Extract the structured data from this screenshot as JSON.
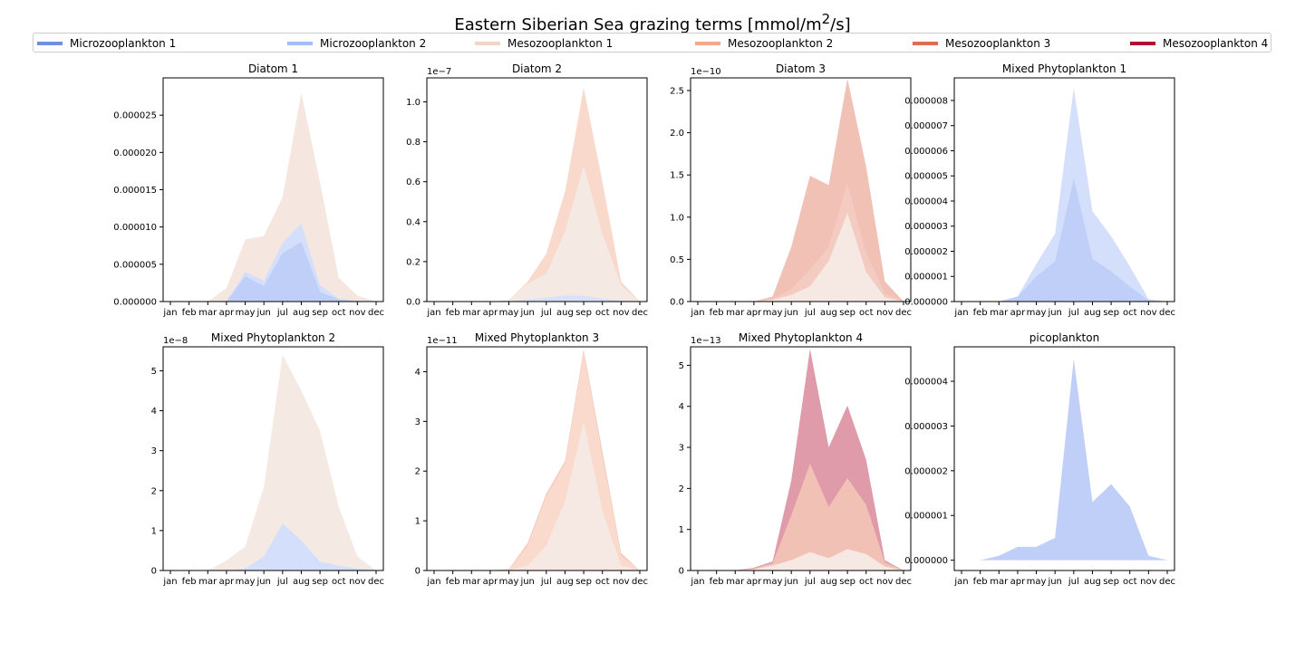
{
  "title_prefix": "Eastern Siberian Sea grazing terms [mmol/m",
  "title_sup": "2",
  "title_suffix": "/s]",
  "legend": [
    {
      "name": "Microzooplankton 1",
      "color": "#6f8fe0"
    },
    {
      "name": "Microzooplankton 2",
      "color": "#9fbff5"
    },
    {
      "name": "Mesozooplankton 1",
      "color": "#f2d3c4"
    },
    {
      "name": "Mesozooplankton 2",
      "color": "#f0a78a"
    },
    {
      "name": "Mesozooplankton 3",
      "color": "#e06a57"
    },
    {
      "name": "Mesozooplankton 4",
      "color": "#b40f2f"
    }
  ],
  "chart_data": [
    {
      "type": "area",
      "title": "Diatom 1",
      "categories": [
        "jan",
        "feb",
        "mar",
        "apr",
        "may",
        "jun",
        "jul",
        "aug",
        "sep",
        "oct",
        "nov",
        "dec"
      ],
      "ylim": [
        0,
        3e-05
      ],
      "offset_label": "",
      "yticks": [
        0,
        5e-06,
        1e-05,
        1.5e-05,
        2e-05,
        2.5e-05
      ],
      "ytick_labels": [
        "0.000000",
        "0.000005",
        "0.000010",
        "0.000015",
        "0.000020",
        "0.000025"
      ],
      "series": [
        {
          "color": "#f5e7df",
          "values": [
            0,
            0,
            0,
            1.8e-06,
            8.3e-06,
            8.8e-06,
            1.4e-05,
            2.8e-05,
            1.6e-05,
            3.2e-06,
            8e-07,
            0
          ]
        },
        {
          "color": "#d4e0fb",
          "values": [
            0,
            0,
            0,
            2e-08,
            4e-06,
            2.8e-06,
            7.9e-06,
            1.05e-05,
            2.2e-06,
            4e-07,
            1e-07,
            0
          ]
        },
        {
          "color": "#c0cff7",
          "values": [
            0,
            0,
            0,
            0,
            3.4e-06,
            2.1e-06,
            6.5e-06,
            8e-06,
            1.3e-06,
            3e-07,
            0,
            0
          ]
        }
      ]
    },
    {
      "type": "area",
      "title": "Diatom 2",
      "categories": [
        "jan",
        "feb",
        "mar",
        "apr",
        "may",
        "jun",
        "jul",
        "aug",
        "sep",
        "oct",
        "nov",
        "dec"
      ],
      "ylim": [
        0,
        1.12
      ],
      "offset_label": "1e−7",
      "yticks": [
        0,
        0.2,
        0.4,
        0.6,
        0.8,
        1.0
      ],
      "ytick_labels": [
        "0.0",
        "0.2",
        "0.4",
        "0.6",
        "0.8",
        "1.0"
      ],
      "series": [
        {
          "color": "#f9d9cc",
          "values": [
            0,
            0,
            0,
            0,
            0.005,
            0.1,
            0.24,
            0.55,
            1.07,
            0.6,
            0.1,
            0
          ]
        },
        {
          "color": "#f5e9e3",
          "values": [
            0,
            0,
            0,
            0,
            0.003,
            0.09,
            0.14,
            0.35,
            0.68,
            0.34,
            0.08,
            0
          ]
        },
        {
          "color": "#d8e2fa",
          "values": [
            0,
            0,
            0,
            0,
            0,
            0.01,
            0.02,
            0.03,
            0.03,
            0.015,
            0.005,
            0
          ]
        }
      ]
    },
    {
      "type": "area",
      "title": "Diatom 3",
      "categories": [
        "jan",
        "feb",
        "mar",
        "apr",
        "may",
        "jun",
        "jul",
        "aug",
        "sep",
        "oct",
        "nov",
        "dec"
      ],
      "ylim": [
        0,
        2.65
      ],
      "offset_label": "1e−10",
      "yticks": [
        0,
        0.5,
        1.0,
        1.5,
        2.0,
        2.5
      ],
      "ytick_labels": [
        "0.0",
        "0.5",
        "1.0",
        "1.5",
        "2.0",
        "2.5"
      ],
      "series": [
        {
          "color": "#f2c1b6",
          "values": [
            0,
            0,
            0,
            0,
            0.06,
            0.65,
            1.49,
            1.38,
            2.64,
            1.6,
            0.24,
            0
          ]
        },
        {
          "color": "#f4cbc0",
          "values": [
            0,
            0,
            0,
            0,
            0.03,
            0.15,
            0.38,
            0.65,
            1.4,
            0.58,
            0.1,
            0
          ]
        },
        {
          "color": "#f6e8e2",
          "values": [
            0,
            0,
            0,
            0,
            0.02,
            0.08,
            0.18,
            0.48,
            1.05,
            0.35,
            0.05,
            0
          ]
        }
      ]
    },
    {
      "type": "area",
      "title": "Mixed Phytoplankton 1",
      "categories": [
        "jan",
        "feb",
        "mar",
        "apr",
        "may",
        "jun",
        "jul",
        "aug",
        "sep",
        "oct",
        "nov",
        "dec"
      ],
      "ylim": [
        0,
        8.9e-06
      ],
      "offset_label": "",
      "yticks": [
        0,
        1e-06,
        2e-06,
        3e-06,
        4e-06,
        5e-06,
        6e-06,
        7e-06,
        8e-06
      ],
      "ytick_labels": [
        "0.000000",
        "0.000001",
        "0.000002",
        "0.000003",
        "0.000004",
        "0.000005",
        "0.000006",
        "0.000007",
        "0.000008"
      ],
      "series": [
        {
          "color": "#d4e0fb",
          "values": [
            0,
            0,
            0,
            2e-07,
            1.5e-06,
            2.7e-06,
            8.5e-06,
            3.6e-06,
            2.6e-06,
            1.4e-06,
            1e-07,
            0
          ]
        },
        {
          "color": "#c0cff7",
          "values": [
            0,
            0,
            0,
            2e-07,
            1e-06,
            1.6e-06,
            4.9e-06,
            1.7e-06,
            1.2e-06,
            6e-07,
            5e-08,
            0
          ]
        }
      ]
    },
    {
      "type": "area",
      "title": "Mixed Phytoplankton 2",
      "categories": [
        "jan",
        "feb",
        "mar",
        "apr",
        "may",
        "jun",
        "jul",
        "aug",
        "sep",
        "oct",
        "nov",
        "dec"
      ],
      "ylim": [
        0,
        5.6
      ],
      "offset_label": "1e−8",
      "yticks": [
        0,
        1,
        2,
        3,
        4,
        5
      ],
      "ytick_labels": [
        "0",
        "1",
        "2",
        "3",
        "4",
        "5"
      ],
      "series": [
        {
          "color": "#f5e9e3",
          "values": [
            0,
            0,
            0,
            0.25,
            0.6,
            2.1,
            5.4,
            4.5,
            3.5,
            1.6,
            0.35,
            0
          ]
        },
        {
          "color": "#d4e0fb",
          "values": [
            0,
            0,
            0,
            0,
            0.05,
            0.35,
            1.18,
            0.75,
            0.22,
            0.12,
            0.05,
            0
          ]
        }
      ]
    },
    {
      "type": "area",
      "title": "Mixed Phytoplankton 3",
      "categories": [
        "jan",
        "feb",
        "mar",
        "apr",
        "may",
        "jun",
        "jul",
        "aug",
        "sep",
        "oct",
        "nov",
        "dec"
      ],
      "ylim": [
        0,
        4.5
      ],
      "offset_label": "1e−11",
      "yticks": [
        0,
        1,
        2,
        3,
        4
      ],
      "ytick_labels": [
        "0",
        "1",
        "2",
        "3",
        "4"
      ],
      "series": [
        {
          "color": "#f3c9bd",
          "values": [
            0,
            0,
            0,
            0,
            0.03,
            0.55,
            1.55,
            2.2,
            4.45,
            2.4,
            0.35,
            0
          ]
        },
        {
          "color": "#f9dacd",
          "values": [
            0,
            0,
            0,
            0,
            0.02,
            0.5,
            1.5,
            2.15,
            4.4,
            2.3,
            0.3,
            0
          ]
        },
        {
          "color": "#f6e8e2",
          "values": [
            0,
            0,
            0,
            0,
            0.01,
            0.1,
            0.5,
            1.4,
            3.0,
            1.2,
            0.1,
            0
          ]
        }
      ]
    },
    {
      "type": "area",
      "title": "Mixed Phytoplankton 4",
      "categories": [
        "jan",
        "feb",
        "mar",
        "apr",
        "may",
        "jun",
        "jul",
        "aug",
        "sep",
        "oct",
        "nov",
        "dec"
      ],
      "ylim": [
        0,
        5.45
      ],
      "offset_label": "1e−13",
      "yticks": [
        0,
        1,
        2,
        3,
        4,
        5
      ],
      "ytick_labels": [
        "0",
        "1",
        "2",
        "3",
        "4",
        "5"
      ],
      "series": [
        {
          "color": "#df9ba9",
          "values": [
            0,
            0,
            0,
            0.07,
            0.22,
            2.2,
            5.4,
            3.0,
            4.02,
            2.7,
            0.25,
            0
          ]
        },
        {
          "color": "#f2c1b6",
          "values": [
            0,
            0,
            0,
            0.05,
            0.18,
            1.35,
            2.6,
            1.55,
            2.25,
            1.6,
            0.2,
            0
          ]
        },
        {
          "color": "#f6e8e2",
          "values": [
            0,
            0,
            0,
            0.03,
            0.12,
            0.25,
            0.45,
            0.3,
            0.52,
            0.4,
            0.1,
            0
          ]
        }
      ]
    },
    {
      "type": "area",
      "title": "picoplankton",
      "categories": [
        "jan",
        "feb",
        "mar",
        "apr",
        "may",
        "jun",
        "jul",
        "aug",
        "sep",
        "oct",
        "nov",
        "dec"
      ],
      "ylim": [
        -2.3e-07,
        4.77e-06
      ],
      "offset_label": "",
      "yticks": [
        0,
        1e-06,
        2e-06,
        3e-06,
        4e-06
      ],
      "ytick_labels": [
        "0.000000",
        "0.000001",
        "0.000002",
        "0.000003",
        "0.000004"
      ],
      "series": [
        {
          "color": "#c0cff7",
          "values": [
            0,
            0,
            1e-07,
            3e-07,
            3e-07,
            5e-07,
            4.5e-06,
            1.3e-06,
            1.7e-06,
            1.2e-06,
            1e-07,
            0
          ]
        }
      ]
    }
  ]
}
